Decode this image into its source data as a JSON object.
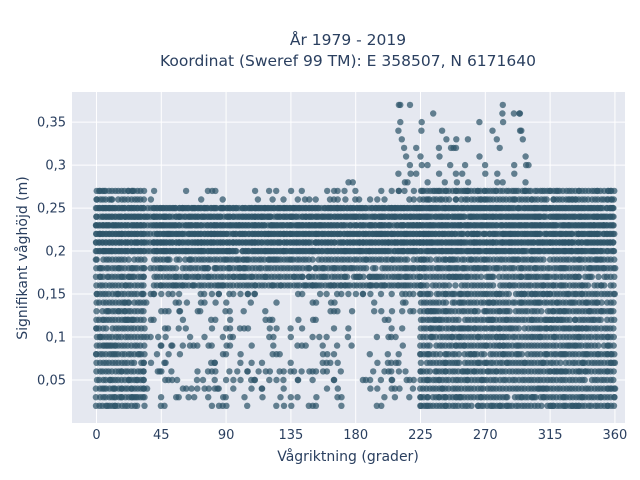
{
  "chart_data": {
    "type": "scatter",
    "title_line1": "År 1979 - 2019",
    "title_line2": "Koordinat (Sweref 99 TM): E 358507, N 6171640",
    "xlabel": "Vågriktning (grader)",
    "ylabel": "Signifikant våghöjd (m)",
    "xlim": [
      -17,
      367
    ],
    "ylim": [
      0,
      0.385
    ],
    "xticks": [
      0,
      45,
      90,
      135,
      180,
      225,
      270,
      315,
      360
    ],
    "xtick_labels": [
      "0",
      "45",
      "90",
      "135",
      "180",
      "225",
      "270",
      "315",
      "360"
    ],
    "yticks": [
      0.05,
      0.1,
      0.15,
      0.2,
      0.25,
      0.3,
      0.35
    ],
    "ytick_labels": [
      "0,05",
      "0,1",
      "0,15",
      "0,2",
      "0,25",
      "0,3",
      "0,35"
    ],
    "grid": true,
    "marker_color": "#2e5469",
    "plot_bg": "#e5e8f0",
    "series": [
      {
        "bands": [
          {
            "x": [
              0,
              360
            ],
            "y": [
              0.2,
              0.25
            ],
            "density": "full"
          },
          {
            "x": [
              0,
              360
            ],
            "y": [
              0.02,
              0.27
            ],
            "density": "edges"
          },
          {
            "x": [
              0,
              35
            ],
            "y": [
              0.02,
              0.27
            ],
            "density": "full"
          },
          {
            "x": [
              225,
              360
            ],
            "y": [
              0.02,
              0.27
            ],
            "density": "full"
          },
          {
            "x": [
              40,
              225
            ],
            "y": [
              0.16,
              0.25
            ],
            "density": "full"
          },
          {
            "x": [
              210,
              300
            ],
            "y": [
              0.27,
              0.37
            ],
            "density": "sparse"
          }
        ],
        "points": [
          [
            210,
            0.37
          ],
          [
            211,
            0.37
          ],
          [
            211,
            0.35
          ],
          [
            212,
            0.33
          ],
          [
            215,
            0.31
          ],
          [
            222,
            0.32
          ],
          [
            225,
            0.31
          ],
          [
            240,
            0.34
          ],
          [
            243,
            0.33
          ],
          [
            248,
            0.32
          ],
          [
            275,
            0.34
          ],
          [
            278,
            0.33
          ],
          [
            280,
            0.32
          ],
          [
            294,
            0.36
          ],
          [
            295,
            0.34
          ],
          [
            296,
            0.33
          ],
          [
            298,
            0.31
          ],
          [
            300,
            0.3
          ],
          [
            266,
            0.31
          ],
          [
            256,
            0.3
          ],
          [
            175,
            0.28
          ],
          [
            178,
            0.28
          ],
          [
            205,
            0.27
          ],
          [
            210,
            0.27
          ],
          [
            216,
            0.28
          ],
          [
            190,
            0.26
          ],
          [
            195,
            0.26
          ],
          [
            200,
            0.26
          ],
          [
            50,
            0.13
          ],
          [
            55,
            0.14
          ],
          [
            58,
            0.13
          ],
          [
            60,
            0.12
          ],
          [
            62,
            0.11
          ],
          [
            65,
            0.1
          ],
          [
            70,
            0.09
          ],
          [
            75,
            0.1
          ],
          [
            80,
            0.09
          ],
          [
            82,
            0.07
          ],
          [
            90,
            0.05
          ],
          [
            95,
            0.04
          ],
          [
            100,
            0.05
          ],
          [
            105,
            0.06
          ],
          [
            110,
            0.05
          ],
          [
            115,
            0.04
          ],
          [
            120,
            0.05
          ],
          [
            125,
            0.05
          ],
          [
            130,
            0.04
          ],
          [
            140,
            0.05
          ],
          [
            160,
            0.06
          ],
          [
            165,
            0.05
          ],
          [
            190,
            0.05
          ],
          [
            195,
            0.04
          ],
          [
            200,
            0.06
          ],
          [
            205,
            0.05
          ],
          [
            210,
            0.06
          ],
          [
            185,
            0.05
          ],
          [
            88,
            0.03
          ],
          [
            84,
            0.04
          ],
          [
            70,
            0.04
          ],
          [
            45,
            0.09
          ],
          [
            48,
            0.07
          ],
          [
            52,
            0.06
          ],
          [
            56,
            0.05
          ],
          [
            60,
            0.04
          ],
          [
            64,
            0.03
          ],
          [
            66,
            0.04
          ],
          [
            74,
            0.05
          ],
          [
            78,
            0.04
          ],
          [
            48,
            0.1
          ],
          [
            52,
            0.09
          ],
          [
            42,
            0.08
          ],
          [
            44,
            0.06
          ],
          [
            50,
            0.05
          ],
          [
            40,
            0.15
          ],
          [
            45,
            0.15
          ],
          [
            50,
            0.15
          ],
          [
            85,
            0.15
          ],
          [
            95,
            0.15
          ],
          [
            100,
            0.15
          ],
          [
            105,
            0.15
          ],
          [
            110,
            0.15
          ],
          [
            140,
            0.15
          ],
          [
            170,
            0.15
          ],
          [
            185,
            0.15
          ],
          [
            205,
            0.15
          ],
          [
            220,
            0.15
          ],
          [
            75,
            0.14
          ],
          [
            72,
            0.13
          ],
          [
            150,
            0.16
          ],
          [
            165,
            0.16
          ],
          [
            190,
            0.16
          ]
        ]
      }
    ]
  }
}
